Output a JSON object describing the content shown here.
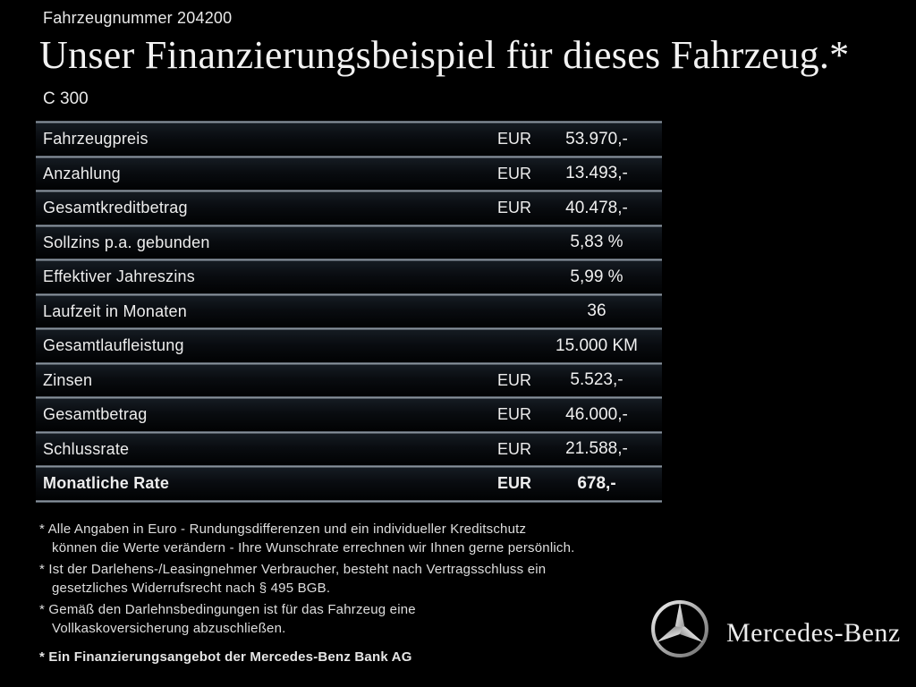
{
  "page": {
    "vehicle_number": "Fahrzeugnummer 204200",
    "title": "Unser Finanzierungsbeispiel für dieses Fahrzeug.*",
    "model": "C 300"
  },
  "table": {
    "rows": [
      {
        "label": "Fahrzeugpreis",
        "currency": "EUR",
        "value": "53.970,-",
        "bold": false
      },
      {
        "label": "Anzahlung",
        "currency": "EUR",
        "value": "13.493,-",
        "bold": false
      },
      {
        "label": "Gesamtkreditbetrag",
        "currency": "EUR",
        "value": "40.478,-",
        "bold": false
      },
      {
        "label": "Sollzins p.a. gebunden",
        "currency": "",
        "value": "5,83 %",
        "bold": false
      },
      {
        "label": "Effektiver Jahreszins",
        "currency": "",
        "value": "5,99 %",
        "bold": false
      },
      {
        "label": "Laufzeit in Monaten",
        "currency": "",
        "value": "36",
        "bold": false
      },
      {
        "label": "Gesamtlaufleistung",
        "currency": "",
        "value": "15.000 KM",
        "bold": false
      },
      {
        "label": "Zinsen",
        "currency": "EUR",
        "value": "5.523,-",
        "bold": false
      },
      {
        "label": "Gesamtbetrag",
        "currency": "EUR",
        "value": "46.000,-",
        "bold": false
      },
      {
        "label": "Schlussrate",
        "currency": "EUR",
        "value": "21.588,-",
        "bold": false
      },
      {
        "label": "Monatliche Rate",
        "currency": "EUR",
        "value": "678,-",
        "bold": true
      }
    ]
  },
  "footnotes": [
    {
      "lines": [
        "* Alle Angaben in Euro - Rundungsdifferenzen und ein individueller Kreditschutz",
        "können die Werte verändern - Ihre Wunschrate errechnen wir Ihnen gerne persönlich."
      ]
    },
    {
      "lines": [
        "* Ist der Darlehens-/Leasingnehmer Verbraucher, besteht nach Vertragsschluss ein",
        "gesetzliches Widerrufsrecht nach § 495 BGB."
      ]
    },
    {
      "lines": [
        "* Gemäß den Darlehnsbedingungen ist für das Fahrzeug eine",
        "Vollkaskoversicherung abzuschließen."
      ]
    }
  ],
  "footer": {
    "financing_note": "* Ein Finanzierungsangebot der Mercedes-Benz Bank AG",
    "brand": "Mercedes-Benz"
  },
  "colors": {
    "background": "#000000",
    "text": "#ececec",
    "separator": "#9aa3ad"
  }
}
